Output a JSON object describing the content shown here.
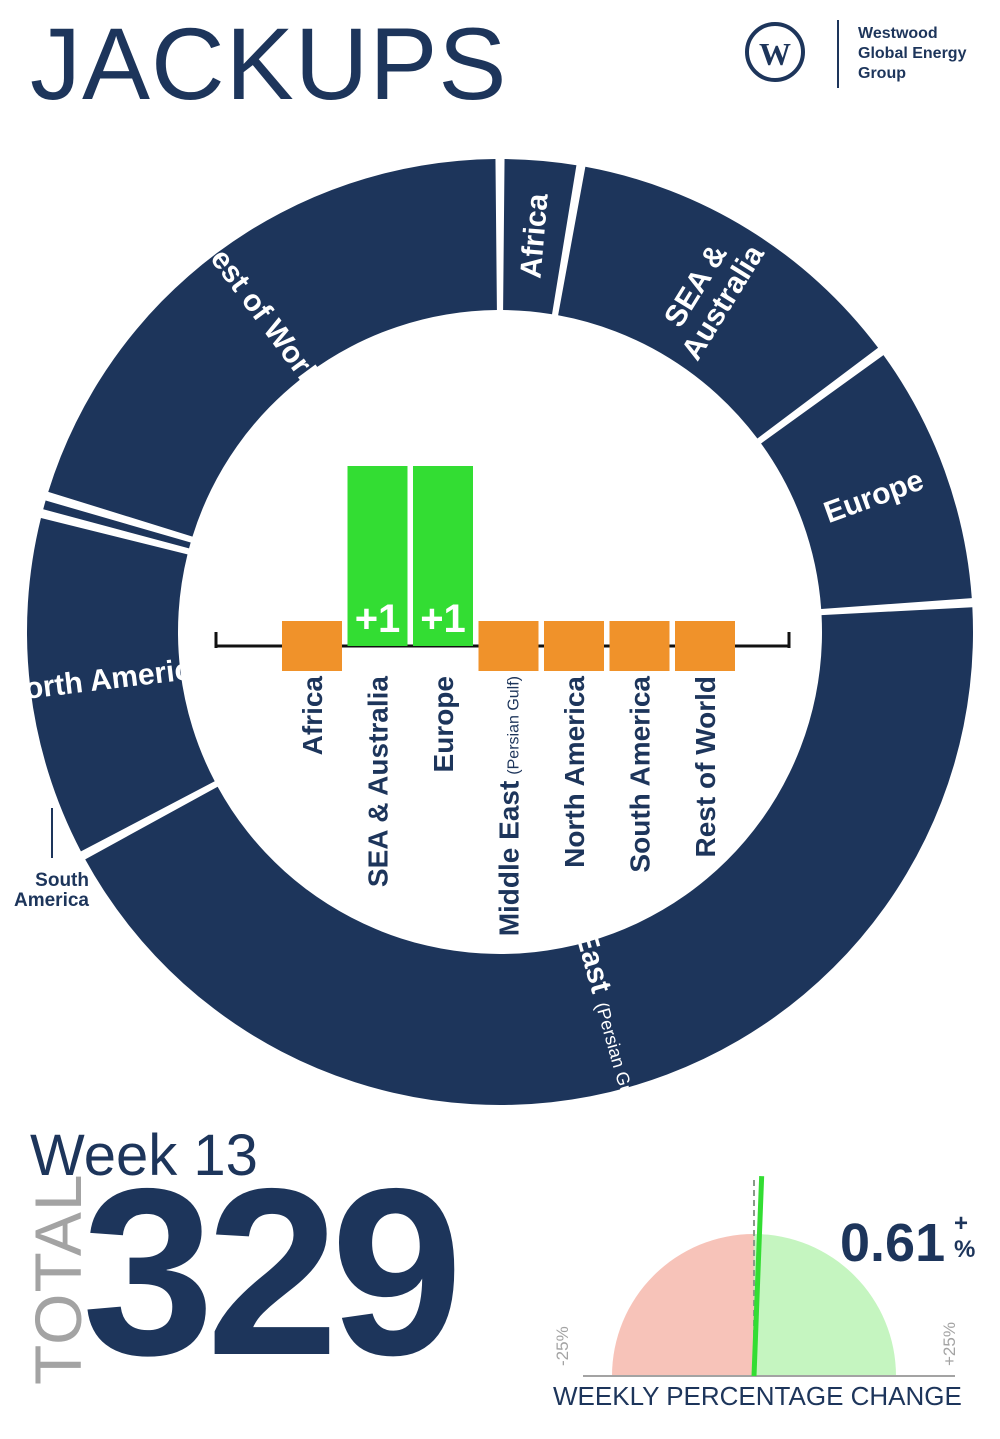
{
  "header": {
    "title": "JACKUPS"
  },
  "brand": {
    "name_lines": [
      "Westwood",
      "Global Energy",
      "Group"
    ],
    "logo_letter": "W"
  },
  "week": {
    "label": "Week 13"
  },
  "total": {
    "label": "TOTAL",
    "value": "329"
  },
  "gauge": {
    "value_text": "0.61",
    "sign": "+",
    "unit": "%",
    "value": 0.61,
    "min_label": "-25%",
    "max_label": "+25%",
    "range": [
      -25,
      25
    ],
    "caption": "WEEKLY PERCENTAGE CHANGE"
  },
  "colors": {
    "navy": "#1d355b",
    "green": "#33dd33",
    "orange": "#f0922a",
    "gauge_negative": "#f7c3b9",
    "gauge_positive": "#c5f5c0"
  },
  "chart_data": [
    {
      "type": "pie",
      "categories": [
        "Africa",
        "SEA & Australia",
        "Europe",
        "Middle East",
        "North America",
        "South America",
        "Rest of World"
      ],
      "values": [
        9,
        40,
        30,
        142,
        39,
        2,
        67
      ],
      "value_units": "rigs (approx. share of total)",
      "slice_labels": [
        {
          "main": "Africa",
          "sub": ""
        },
        {
          "main": "SEA &",
          "sub": "Australia"
        },
        {
          "main": "Europe",
          "sub": ""
        },
        {
          "main": "Middle East",
          "sub": "(Persian Gulf & Red Sea)"
        },
        {
          "main": "North America",
          "sub": ""
        },
        {
          "main": "",
          "sub": ""
        },
        {
          "main": "Rest of World",
          "sub": ""
        }
      ],
      "callout_label": {
        "line1": "South",
        "line2": "America"
      }
    },
    {
      "type": "bar",
      "title": "",
      "categories": [
        "Africa",
        "SEA & Australia",
        "Europe",
        "Middle East",
        "North America",
        "South America",
        "Rest of World"
      ],
      "category_labels": [
        {
          "main": "Africa",
          "sub": ""
        },
        {
          "main": "SEA & Australia",
          "sub": ""
        },
        {
          "main": "Europe",
          "sub": ""
        },
        {
          "main": "Middle East",
          "sub": "(Persian Gulf)"
        },
        {
          "main": "North America",
          "sub": ""
        },
        {
          "main": "South America",
          "sub": ""
        },
        {
          "main": "Rest of World",
          "sub": ""
        }
      ],
      "values": [
        0,
        1,
        1,
        0,
        0,
        0,
        0
      ],
      "value_labels": [
        "",
        "+1",
        "+1",
        "",
        "",
        "",
        ""
      ],
      "xlabel": "",
      "ylabel": "",
      "ylim": [
        0,
        1
      ]
    }
  ]
}
